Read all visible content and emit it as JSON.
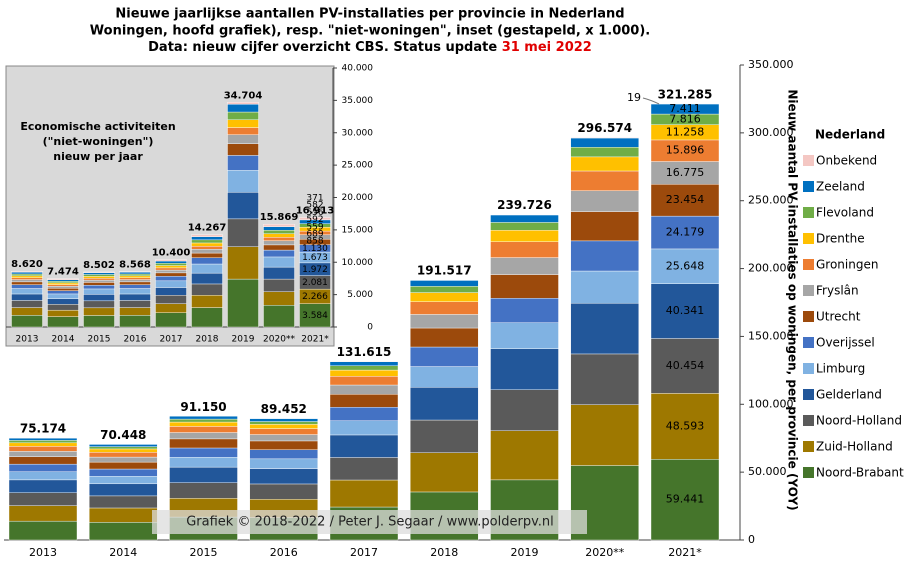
{
  "title": {
    "line1": "Nieuwe jaarlijkse aantallen PV-installaties per provincie in Nederland",
    "line2": "Woningen, hoofd grafiek), resp. \"niet-woningen\", inset (gestapeld, x 1.000).",
    "line3": "Data: nieuw cijfer overzicht CBS. Status update ",
    "date": "31 mei 2022"
  },
  "watermark": "Grafiek © 2018-2022 / Peter J. Segaar / www.polderpv.nl",
  "chart_data": [
    {
      "type": "stacked-bar",
      "y_axis_label": "Nieuw aantal PV installaties op woningen, per provincie (YOY)",
      "legend_title": "Nederland",
      "legend_position": "right",
      "categories": [
        "2013",
        "2014",
        "2015",
        "2016",
        "2017",
        "2018",
        "2019",
        "2020**",
        "2021*"
      ],
      "ylim": [
        0,
        350000
      ],
      "yticks": [
        0,
        {
          "value": 50000,
          "label": "50.000"
        },
        {
          "value": 100000,
          "label": "100.000"
        },
        {
          "value": 150000,
          "label": "150.000"
        },
        {
          "value": 200000,
          "label": "200.000"
        },
        {
          "value": 250000,
          "label": "250.000"
        },
        {
          "value": 300000,
          "label": "300.000"
        },
        {
          "value": 350000,
          "label": "350.000"
        }
      ],
      "totals": [
        {
          "value": 75174,
          "label": "75.174"
        },
        {
          "value": 70448,
          "label": "70.448"
        },
        {
          "value": 91150,
          "label": "91.150"
        },
        {
          "value": 89452,
          "label": "89.452"
        },
        {
          "value": 131615,
          "label": "131.615"
        },
        {
          "value": 191517,
          "label": "191.517"
        },
        {
          "value": 239726,
          "label": "239.726"
        },
        {
          "value": 296574,
          "label": "296.574"
        },
        {
          "value": 321285,
          "label": "321.285"
        }
      ],
      "series": [
        {
          "name": "Noord-Brabant",
          "color": "#45752b",
          "values": [
            13900,
            13000,
            16900,
            16500,
            24300,
            35400,
            44300,
            54900,
            59441
          ],
          "value_labels": [
            null,
            null,
            null,
            null,
            null,
            null,
            null,
            null,
            "59.441"
          ]
        },
        {
          "name": "Zuid-Holland",
          "color": "#9e7800",
          "values": [
            11400,
            10600,
            13800,
            13500,
            19900,
            28900,
            36200,
            44800,
            48593
          ],
          "value_labels": [
            null,
            null,
            null,
            null,
            null,
            null,
            null,
            null,
            "48.593"
          ]
        },
        {
          "name": "Noord-Holland",
          "color": "#5a5a5a",
          "values": [
            9500,
            8900,
            11500,
            11300,
            16600,
            24100,
            30200,
            37400,
            40454
          ],
          "value_labels": [
            null,
            null,
            null,
            null,
            null,
            null,
            null,
            null,
            "40.454"
          ]
        },
        {
          "name": "Gelderland",
          "color": "#22579a",
          "values": [
            9500,
            8900,
            11500,
            11300,
            16600,
            24100,
            30200,
            37400,
            40341
          ],
          "value_labels": [
            null,
            null,
            null,
            null,
            null,
            null,
            null,
            null,
            "40.341"
          ]
        },
        {
          "name": "Limburg",
          "color": "#80b2e2",
          "values": [
            6000,
            5600,
            7300,
            7200,
            10500,
            15300,
            19200,
            23700,
            25648
          ],
          "value_labels": [
            null,
            null,
            null,
            null,
            null,
            null,
            null,
            null,
            "25.648"
          ]
        },
        {
          "name": "Overijssel",
          "color": "#4472c4",
          "values": [
            5600,
            5300,
            6800,
            6700,
            9900,
            14400,
            18000,
            22200,
            24179
          ],
          "value_labels": [
            null,
            null,
            null,
            null,
            null,
            null,
            null,
            null,
            "24.179"
          ]
        },
        {
          "name": "Utrecht",
          "color": "#9c4a0c",
          "values": [
            5500,
            5100,
            6700,
            6500,
            9600,
            14000,
            17500,
            21600,
            23454
          ],
          "value_labels": [
            null,
            null,
            null,
            null,
            null,
            null,
            null,
            null,
            "23.454"
          ]
        },
        {
          "name": "Fryslân",
          "color": "#a6a6a6",
          "values": [
            3900,
            3700,
            4700,
            4700,
            6800,
            10000,
            12500,
            15400,
            16775
          ],
          "value_labels": [
            null,
            null,
            null,
            null,
            null,
            null,
            null,
            null,
            "16.775"
          ]
        },
        {
          "name": "Groningen",
          "color": "#ed7d31",
          "values": [
            3700,
            3500,
            4500,
            4400,
            6400,
            9400,
            11700,
            14500,
            15896
          ],
          "value_labels": [
            null,
            null,
            null,
            null,
            null,
            null,
            null,
            null,
            "15.896"
          ]
        },
        {
          "name": "Drenthe",
          "color": "#ffc000",
          "values": [
            2600,
            2500,
            3200,
            3100,
            4600,
            6700,
            8400,
            10400,
            11258
          ],
          "value_labels": [
            null,
            null,
            null,
            null,
            null,
            null,
            null,
            null,
            "11.258"
          ]
        },
        {
          "name": "Flevoland",
          "color": "#70ad47",
          "values": [
            1800,
            1700,
            2200,
            2100,
            3200,
            4600,
            5800,
            7100,
            7816
          ],
          "value_labels": [
            null,
            null,
            null,
            null,
            null,
            null,
            null,
            null,
            "7.816"
          ]
        },
        {
          "name": "Zeeland",
          "color": "#0070c0",
          "values": [
            1700,
            1600,
            2100,
            2100,
            3000,
            4400,
            5500,
            6800,
            7411
          ],
          "value_labels": [
            null,
            null,
            null,
            null,
            null,
            null,
            null,
            null,
            "7.411"
          ]
        },
        {
          "name": "Onbekend",
          "color": "#f4c7c3",
          "values": [
            100,
            0,
            0,
            0,
            200,
            200,
            200,
            400,
            19
          ],
          "value_labels": [
            null,
            null,
            null,
            null,
            null,
            null,
            null,
            null,
            "19"
          ]
        }
      ]
    },
    {
      "type": "stacked-bar",
      "annotation": [
        "Economische activiteiten",
        "(\"niet-woningen\")",
        "nieuw per jaar"
      ],
      "categories": [
        "2013",
        "2014",
        "2015",
        "2016",
        "2017",
        "2018",
        "2019",
        "2020**",
        "2021*"
      ],
      "ylim": [
        0,
        40000
      ],
      "yticks": [
        0,
        {
          "value": 5000,
          "label": "5.000"
        },
        {
          "value": 10000,
          "label": "10.000"
        },
        {
          "value": 15000,
          "label": "15.000"
        },
        {
          "value": 20000,
          "label": "20.000"
        },
        {
          "value": 25000,
          "label": "25.000"
        },
        {
          "value": 30000,
          "label": "30.000"
        },
        {
          "value": 35000,
          "label": "35.000"
        },
        {
          "value": 40000,
          "label": "40.000"
        }
      ],
      "totals": [
        {
          "value": 8620,
          "label": "8.620"
        },
        {
          "value": 7474,
          "label": "7.474"
        },
        {
          "value": 8502,
          "label": "8.502"
        },
        {
          "value": 8568,
          "label": "8.568"
        },
        {
          "value": 10400,
          "label": "10.400"
        },
        {
          "value": 14267,
          "label": "14.267"
        },
        {
          "value": 34704,
          "label": "34.704"
        },
        {
          "value": 15869,
          "label": "15.869"
        },
        {
          "value": 16913,
          "label": "16.913"
        }
      ],
      "series": [
        {
          "name": "Noord-Brabant",
          "color": "#45752b",
          "values": [
            1800,
            1600,
            1780,
            1800,
            2200,
            3000,
            7400,
            3350,
            3584
          ],
          "value_labels": [
            null,
            null,
            null,
            null,
            null,
            null,
            null,
            null,
            "3.584"
          ]
        },
        {
          "name": "Zuid-Holland",
          "color": "#9e7800",
          "values": [
            1200,
            1000,
            1180,
            1200,
            1400,
            1900,
            5000,
            2100,
            2266
          ],
          "value_labels": [
            null,
            null,
            null,
            null,
            null,
            null,
            null,
            null,
            "2.266"
          ]
        },
        {
          "name": "Noord-Holland",
          "color": "#5a5a5a",
          "values": [
            1100,
            900,
            1080,
            1100,
            1300,
            1750,
            4300,
            1950,
            2081
          ],
          "value_labels": [
            null,
            null,
            null,
            null,
            null,
            null,
            null,
            null,
            "2.081"
          ]
        },
        {
          "name": "Gelderland",
          "color": "#22579a",
          "values": [
            1000,
            870,
            1000,
            1000,
            1200,
            1670,
            4100,
            1850,
            1972
          ],
          "value_labels": [
            null,
            null,
            null,
            null,
            null,
            null,
            null,
            null,
            "1.972"
          ]
        },
        {
          "name": "Limburg",
          "color": "#80b2e2",
          "values": [
            850,
            740,
            840,
            850,
            1030,
            1410,
            3400,
            1570,
            1673
          ],
          "value_labels": [
            null,
            null,
            null,
            null,
            null,
            null,
            null,
            null,
            "1.673"
          ]
        },
        {
          "name": "Overijssel",
          "color": "#4472c4",
          "values": [
            580,
            500,
            570,
            580,
            700,
            960,
            2300,
            1060,
            1130
          ],
          "value_labels": [
            null,
            null,
            null,
            null,
            null,
            null,
            null,
            null,
            "1.130"
          ]
        },
        {
          "name": "Utrecht",
          "color": "#9c4a0c",
          "values": [
            440,
            380,
            440,
            440,
            530,
            730,
            1800,
            800,
            858
          ],
          "value_labels": [
            null,
            null,
            null,
            null,
            null,
            null,
            null,
            null,
            "858"
          ]
        },
        {
          "name": "Fryslân",
          "color": "#a6a6a6",
          "values": [
            350,
            310,
            350,
            350,
            430,
            590,
            1400,
            650,
            689
          ],
          "value_labels": [
            null,
            null,
            null,
            null,
            null,
            null,
            null,
            null,
            "689"
          ]
        },
        {
          "name": "Groningen",
          "color": "#ed7d31",
          "values": [
            280,
            250,
            280,
            280,
            340,
            470,
            1100,
            520,
            559
          ],
          "value_labels": [
            null,
            null,
            null,
            null,
            null,
            null,
            null,
            null,
            "559"
          ]
        },
        {
          "name": "Drenthe",
          "color": "#ffc000",
          "values": [
            300,
            260,
            300,
            300,
            360,
            500,
            1200,
            560,
            592
          ],
          "value_labels": [
            null,
            null,
            null,
            null,
            null,
            null,
            null,
            null,
            "592"
          ]
        },
        {
          "name": "Flevoland",
          "color": "#70ad47",
          "values": [
            290,
            250,
            290,
            290,
            350,
            480,
            1200,
            540,
            556
          ],
          "value_labels": [
            null,
            null,
            null,
            null,
            null,
            null,
            null,
            null,
            "556"
          ]
        },
        {
          "name": "Zeeland",
          "color": "#0070c0",
          "values": [
            290,
            250,
            290,
            290,
            350,
            480,
            1200,
            540,
            582
          ],
          "value_labels": [
            null,
            null,
            null,
            null,
            null,
            null,
            null,
            null,
            "582"
          ]
        },
        {
          "name": "Onbekend",
          "color": "#f4c7c3",
          "values": [
            140,
            164,
            102,
            88,
            210,
            327,
            304,
            379,
            371
          ],
          "value_labels": [
            null,
            null,
            null,
            null,
            null,
            null,
            null,
            null,
            "371"
          ]
        }
      ]
    }
  ]
}
